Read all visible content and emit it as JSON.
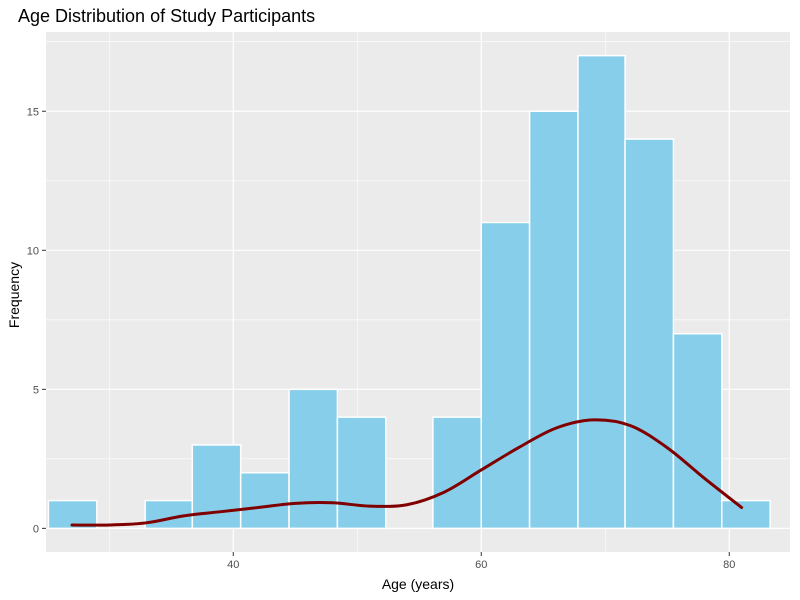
{
  "chart_data": {
    "type": "bar",
    "title": "Age Distribution of Study Participants",
    "xlabel": "Age (years)",
    "ylabel": "Frequency",
    "xlim": [
      24.9,
      84.9
    ],
    "ylim": [
      -0.85,
      17.85
    ],
    "x_ticks": [
      40,
      60,
      80
    ],
    "y_ticks": [
      0,
      5,
      10,
      15
    ],
    "bins": [
      {
        "x0": 25.1,
        "x1": 29.0,
        "value": 1
      },
      {
        "x0": 29.0,
        "x1": 32.9,
        "value": 0
      },
      {
        "x0": 32.9,
        "x1": 36.7,
        "value": 1
      },
      {
        "x0": 36.7,
        "x1": 40.6,
        "value": 3
      },
      {
        "x0": 40.6,
        "x1": 44.5,
        "value": 2
      },
      {
        "x0": 44.5,
        "x1": 48.4,
        "value": 5
      },
      {
        "x0": 48.4,
        "x1": 52.3,
        "value": 4
      },
      {
        "x0": 52.3,
        "x1": 56.1,
        "value": 0
      },
      {
        "x0": 56.1,
        "x1": 60.0,
        "value": 4
      },
      {
        "x0": 60.0,
        "x1": 63.9,
        "value": 11
      },
      {
        "x0": 63.9,
        "x1": 67.8,
        "value": 15
      },
      {
        "x0": 67.8,
        "x1": 71.6,
        "value": 17
      },
      {
        "x0": 71.6,
        "x1": 75.5,
        "value": 14
      },
      {
        "x0": 75.5,
        "x1": 79.4,
        "value": 7
      },
      {
        "x0": 79.4,
        "x1": 83.3,
        "value": 1
      }
    ],
    "density_curve": {
      "x": [
        27,
        30,
        33,
        36,
        39,
        42,
        45,
        48,
        51,
        54,
        57,
        60,
        63,
        66,
        69,
        72,
        75,
        78,
        81
      ],
      "y": [
        0.12,
        0.12,
        0.2,
        0.45,
        0.6,
        0.75,
        0.9,
        0.92,
        0.8,
        0.85,
        1.3,
        2.1,
        2.9,
        3.6,
        3.9,
        3.7,
        2.9,
        1.8,
        0.75
      ]
    },
    "grid": true,
    "colors": {
      "panel_background": "#ebebeb",
      "grid_major": "#ffffff",
      "bar_fill": "#87ceeb",
      "bar_outline": "#ffffff",
      "density_line": "#800000"
    }
  }
}
